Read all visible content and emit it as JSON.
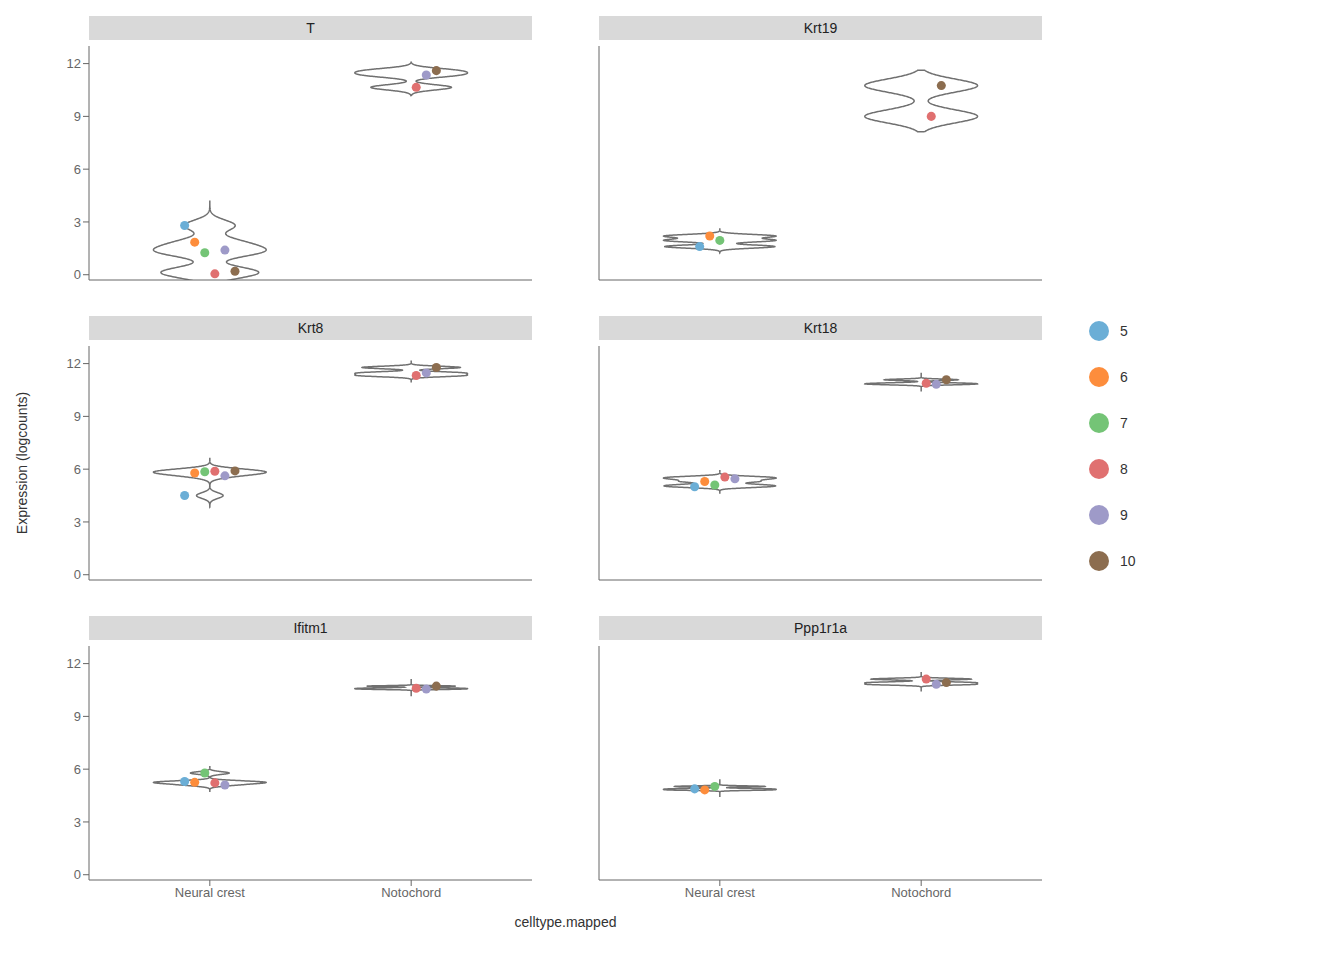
{
  "chart_data": [
    {
      "type": "violin",
      "title": "T",
      "categories": [
        "Neural crest",
        "Notochord"
      ],
      "color": "#707070",
      "ylim": [
        -0.3,
        13.0
      ],
      "yticks": [
        0,
        3,
        6,
        9,
        12
      ],
      "tick_labels": "y",
      "legend": "right",
      "series": [
        {
          "name": "5",
          "color": "#6baed6",
          "values": [
            2.8,
            null
          ]
        },
        {
          "name": "6",
          "color": "#fd8d3c",
          "values": [
            1.85,
            null
          ]
        },
        {
          "name": "7",
          "color": "#74c476",
          "values": [
            1.25,
            null
          ]
        },
        {
          "name": "8",
          "color": "#e07070",
          "values": [
            0.05,
            10.65
          ]
        },
        {
          "name": "9",
          "color": "#9e9ac8",
          "values": [
            1.4,
            11.35
          ]
        },
        {
          "name": "10",
          "color": "#8c6d4f",
          "values": [
            0.2,
            11.6
          ]
        }
      ]
    },
    {
      "type": "violin",
      "title": "Krt19",
      "categories": [
        "Neural crest",
        "Notochord"
      ],
      "color": "#707070",
      "ylim": [
        -0.3,
        13.0
      ],
      "yticks": [
        0,
        3,
        6,
        9,
        12
      ],
      "tick_labels": false,
      "series": [
        {
          "name": "5",
          "color": "#6baed6",
          "values": [
            1.6,
            null
          ]
        },
        {
          "name": "6",
          "color": "#fd8d3c",
          "values": [
            2.2,
            null
          ]
        },
        {
          "name": "7",
          "color": "#74c476",
          "values": [
            1.95,
            null
          ]
        },
        {
          "name": "8",
          "color": "#e07070",
          "values": [
            null,
            9.0
          ]
        },
        {
          "name": "10",
          "color": "#8c6d4f",
          "values": [
            null,
            10.75
          ]
        }
      ]
    },
    {
      "type": "violin",
      "title": "Krt8",
      "categories": [
        "Neural crest",
        "Notochord"
      ],
      "color": "#707070",
      "ylim": [
        -0.3,
        13.0
      ],
      "yticks": [
        0,
        3,
        6,
        9,
        12
      ],
      "tick_labels": "y",
      "y_label": "Expression (logcounts)",
      "series": [
        {
          "name": "5",
          "color": "#6baed6",
          "values": [
            4.5,
            null
          ]
        },
        {
          "name": "6",
          "color": "#fd8d3c",
          "values": [
            5.78,
            null
          ]
        },
        {
          "name": "7",
          "color": "#74c476",
          "values": [
            5.85,
            null
          ]
        },
        {
          "name": "8",
          "color": "#e07070",
          "values": [
            5.88,
            11.32
          ]
        },
        {
          "name": "9",
          "color": "#9e9ac8",
          "values": [
            5.62,
            11.47
          ]
        },
        {
          "name": "10",
          "color": "#8c6d4f",
          "values": [
            5.9,
            11.78
          ]
        }
      ]
    },
    {
      "type": "violin",
      "title": "Krt18",
      "categories": [
        "Neural crest",
        "Notochord"
      ],
      "color": "#707070",
      "ylim": [
        -0.3,
        13.0
      ],
      "yticks": [
        0,
        3,
        6,
        9,
        12
      ],
      "tick_labels": false,
      "series": [
        {
          "name": "5",
          "color": "#6baed6",
          "values": [
            5.0,
            null
          ]
        },
        {
          "name": "6",
          "color": "#fd8d3c",
          "values": [
            5.3,
            null
          ]
        },
        {
          "name": "7",
          "color": "#74c476",
          "values": [
            5.1,
            null
          ]
        },
        {
          "name": "8",
          "color": "#e07070",
          "values": [
            5.55,
            10.88
          ]
        },
        {
          "name": "9",
          "color": "#9e9ac8",
          "values": [
            5.45,
            10.82
          ]
        },
        {
          "name": "10",
          "color": "#8c6d4f",
          "values": [
            null,
            11.08
          ]
        }
      ]
    },
    {
      "type": "violin",
      "title": "Ifitm1",
      "categories": [
        "Neural crest",
        "Notochord"
      ],
      "color": "#707070",
      "ylim": [
        -0.3,
        13.0
      ],
      "yticks": [
        0,
        3,
        6,
        9,
        12
      ],
      "x_label": "celltype.mapped",
      "series": [
        {
          "name": "5",
          "color": "#6baed6",
          "values": [
            5.3,
            null
          ]
        },
        {
          "name": "6",
          "color": "#fd8d3c",
          "values": [
            5.25,
            null
          ]
        },
        {
          "name": "7",
          "color": "#74c476",
          "values": [
            5.78,
            null
          ]
        },
        {
          "name": "8",
          "color": "#e07070",
          "values": [
            5.22,
            10.6
          ]
        },
        {
          "name": "9",
          "color": "#9e9ac8",
          "values": [
            5.1,
            10.55
          ]
        },
        {
          "name": "10",
          "color": "#8c6d4f",
          "values": [
            null,
            10.72
          ]
        }
      ]
    },
    {
      "type": "violin",
      "title": "Ppp1r1a",
      "categories": [
        "Neural crest",
        "Notochord"
      ],
      "color": "#707070",
      "ylim": [
        -0.3,
        13.0
      ],
      "yticks": [
        0,
        3,
        6,
        9,
        12
      ],
      "tick_labels": "x",
      "series": [
        {
          "name": "5",
          "color": "#6baed6",
          "values": [
            4.88,
            null
          ]
        },
        {
          "name": "6",
          "color": "#fd8d3c",
          "values": [
            4.82,
            null
          ]
        },
        {
          "name": "7",
          "color": "#74c476",
          "values": [
            5.02,
            null
          ]
        },
        {
          "name": "8",
          "color": "#e07070",
          "values": [
            null,
            11.12
          ]
        },
        {
          "name": "9",
          "color": "#9e9ac8",
          "values": [
            null,
            10.82
          ]
        },
        {
          "name": "10",
          "color": "#8c6d4f",
          "values": [
            null,
            10.92
          ]
        }
      ]
    }
  ]
}
